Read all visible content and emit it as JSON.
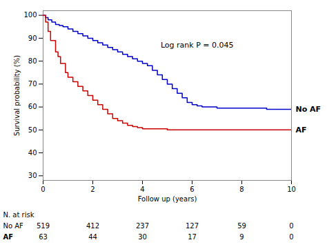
{
  "chart_data": {
    "type": "step",
    "xlabel": "Follow up (years)",
    "ylabel": "Survival probability (%)",
    "xlim": [
      0,
      10
    ],
    "ylim": [
      28,
      102
    ],
    "xticks": [
      0,
      2,
      4,
      6,
      8,
      10
    ],
    "yticks": [
      30,
      40,
      50,
      60,
      70,
      80,
      90,
      100
    ],
    "series": [
      {
        "name": "No AF",
        "color": "#0000CC",
        "x": [
          0,
          0.1,
          0.2,
          0.35,
          0.5,
          0.65,
          0.8,
          1.0,
          1.2,
          1.4,
          1.6,
          1.8,
          2.0,
          2.2,
          2.4,
          2.6,
          2.8,
          3.0,
          3.2,
          3.4,
          3.6,
          3.8,
          4.0,
          4.2,
          4.4,
          4.6,
          4.8,
          5.0,
          5.2,
          5.4,
          5.6,
          5.8,
          6.0,
          6.2,
          6.4,
          6.6,
          6.8,
          7.0,
          7.5,
          8.0,
          8.5,
          9.0,
          9.5,
          10.0
        ],
        "values": [
          100,
          99,
          98,
          97,
          96,
          95.5,
          95,
          94,
          93,
          92,
          91,
          90,
          89,
          88,
          87,
          86,
          85,
          84,
          83,
          82,
          81,
          80,
          79,
          78,
          76,
          74,
          72,
          70,
          68,
          66,
          64,
          62,
          61,
          60.5,
          60,
          60,
          60,
          59.5,
          59.5,
          59.5,
          59.5,
          59,
          59,
          59
        ]
      },
      {
        "name": "AF",
        "color": "#CC0000",
        "x": [
          0,
          0.1,
          0.2,
          0.3,
          0.5,
          0.6,
          0.7,
          0.9,
          1.0,
          1.2,
          1.4,
          1.6,
          1.8,
          2.0,
          2.2,
          2.4,
          2.6,
          2.8,
          3.0,
          3.2,
          3.4,
          3.6,
          3.8,
          4.0,
          4.2,
          4.3,
          4.4,
          4.5,
          4.6,
          4.7,
          4.8,
          5.0,
          5.5,
          6.0,
          6.5,
          7.0,
          7.5,
          8.0,
          8.5,
          9.0,
          9.5,
          10.0
        ],
        "values": [
          100,
          97,
          93,
          89,
          84,
          82,
          79,
          75,
          73,
          71,
          69,
          67,
          65,
          63,
          61,
          59,
          57,
          55,
          54,
          53,
          52,
          51.5,
          51,
          50.5,
          50.5,
          50.5,
          50.5,
          50.5,
          50.5,
          50.5,
          50.5,
          50,
          50,
          50,
          50,
          50,
          50,
          50,
          50,
          50,
          50,
          50
        ]
      }
    ],
    "annotations": [
      {
        "text": "Log rank P = 0.045",
        "x": 6.2,
        "y": 87
      }
    ],
    "risk_table": {
      "title": "N. at risk",
      "x": [
        0,
        2,
        4,
        6,
        8,
        10
      ],
      "rows": [
        {
          "name": "No AF",
          "values": [
            519,
            412,
            237,
            127,
            59,
            0
          ]
        },
        {
          "name": "AF",
          "values": [
            63,
            44,
            30,
            17,
            9,
            0
          ]
        }
      ]
    }
  }
}
